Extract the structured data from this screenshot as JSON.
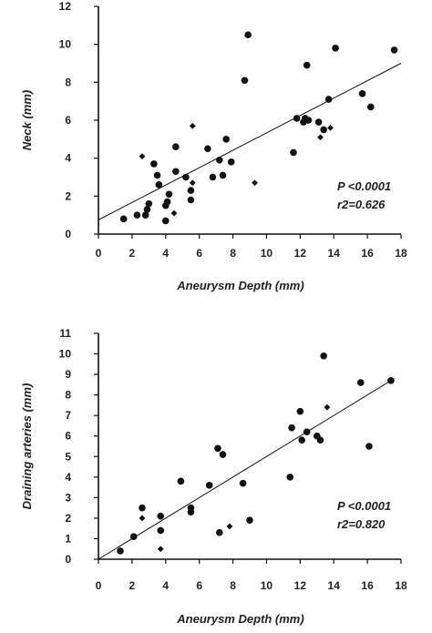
{
  "chart_data": [
    {
      "type": "scatter",
      "xlabel": "Aneurysm Depth (mm)",
      "ylabel": "Neck (mm)",
      "xlim": [
        0,
        18
      ],
      "ylim": [
        0,
        12
      ],
      "xticks": [
        0,
        2,
        4,
        6,
        8,
        10,
        12,
        14,
        16,
        18
      ],
      "yticks": [
        0,
        2,
        4,
        6,
        8,
        10,
        12
      ],
      "annotations": [
        "P <0.0001",
        "r2=0.626"
      ],
      "fit_line": {
        "x": [
          0,
          18
        ],
        "y": [
          0.75,
          9.0
        ]
      },
      "points": [
        {
          "x": 1.5,
          "y": 0.8,
          "m": "dot"
        },
        {
          "x": 2.3,
          "y": 1.0,
          "m": "dot"
        },
        {
          "x": 2.6,
          "y": 4.1,
          "m": "diamond"
        },
        {
          "x": 2.8,
          "y": 1.0,
          "m": "dot"
        },
        {
          "x": 2.9,
          "y": 1.3,
          "m": "dot"
        },
        {
          "x": 3.0,
          "y": 1.6,
          "m": "dot"
        },
        {
          "x": 3.3,
          "y": 3.7,
          "m": "dot"
        },
        {
          "x": 3.5,
          "y": 3.1,
          "m": "dot"
        },
        {
          "x": 3.6,
          "y": 2.6,
          "m": "dot"
        },
        {
          "x": 4.0,
          "y": 1.5,
          "m": "dot"
        },
        {
          "x": 4.1,
          "y": 1.7,
          "m": "dot"
        },
        {
          "x": 4.0,
          "y": 0.7,
          "m": "dot"
        },
        {
          "x": 4.2,
          "y": 2.1,
          "m": "dot"
        },
        {
          "x": 4.5,
          "y": 1.1,
          "m": "diamond"
        },
        {
          "x": 4.6,
          "y": 3.3,
          "m": "dot"
        },
        {
          "x": 4.6,
          "y": 4.6,
          "m": "dot"
        },
        {
          "x": 5.2,
          "y": 3.0,
          "m": "dot"
        },
        {
          "x": 5.5,
          "y": 1.8,
          "m": "dot"
        },
        {
          "x": 5.5,
          "y": 2.3,
          "m": "dot"
        },
        {
          "x": 5.6,
          "y": 2.7,
          "m": "diamond"
        },
        {
          "x": 5.6,
          "y": 5.7,
          "m": "diamond"
        },
        {
          "x": 6.5,
          "y": 4.5,
          "m": "dot"
        },
        {
          "x": 6.8,
          "y": 3.0,
          "m": "dot"
        },
        {
          "x": 7.2,
          "y": 3.9,
          "m": "dot"
        },
        {
          "x": 7.4,
          "y": 3.1,
          "m": "dot"
        },
        {
          "x": 7.6,
          "y": 5.0,
          "m": "dot"
        },
        {
          "x": 7.9,
          "y": 3.8,
          "m": "dot"
        },
        {
          "x": 8.7,
          "y": 8.1,
          "m": "dot"
        },
        {
          "x": 8.9,
          "y": 10.5,
          "m": "dot"
        },
        {
          "x": 9.3,
          "y": 2.7,
          "m": "diamond"
        },
        {
          "x": 11.6,
          "y": 4.3,
          "m": "dot"
        },
        {
          "x": 11.8,
          "y": 6.1,
          "m": "dot"
        },
        {
          "x": 12.2,
          "y": 5.9,
          "m": "dot"
        },
        {
          "x": 12.3,
          "y": 6.1,
          "m": "dot"
        },
        {
          "x": 12.4,
          "y": 8.9,
          "m": "dot"
        },
        {
          "x": 12.5,
          "y": 6.0,
          "m": "dot"
        },
        {
          "x": 13.1,
          "y": 5.9,
          "m": "dot"
        },
        {
          "x": 13.2,
          "y": 5.1,
          "m": "diamond"
        },
        {
          "x": 13.4,
          "y": 5.5,
          "m": "dot"
        },
        {
          "x": 13.7,
          "y": 7.1,
          "m": "dot"
        },
        {
          "x": 13.8,
          "y": 5.6,
          "m": "diamond"
        },
        {
          "x": 14.1,
          "y": 9.8,
          "m": "dot"
        },
        {
          "x": 15.7,
          "y": 7.4,
          "m": "dot"
        },
        {
          "x": 16.2,
          "y": 6.7,
          "m": "dot"
        },
        {
          "x": 17.6,
          "y": 9.7,
          "m": "dot"
        }
      ]
    },
    {
      "type": "scatter",
      "xlabel": "Aneurysm Depth (mm)",
      "ylabel": "Draining arteries (mm)",
      "xlim": [
        0,
        18
      ],
      "ylim": [
        0,
        11
      ],
      "xticks": [
        0,
        2,
        4,
        6,
        8,
        10,
        12,
        14,
        16,
        18
      ],
      "yticks": [
        0,
        1,
        2,
        3,
        4,
        5,
        6,
        7,
        8,
        9,
        10,
        11
      ],
      "annotations": [
        "P <0.0001",
        "r2=0.820"
      ],
      "fit_line": {
        "x": [
          0,
          17.6
        ],
        "y": [
          0.0,
          8.8
        ]
      },
      "points": [
        {
          "x": 1.3,
          "y": 0.4,
          "m": "dot"
        },
        {
          "x": 2.1,
          "y": 1.1,
          "m": "dot"
        },
        {
          "x": 2.6,
          "y": 2.0,
          "m": "diamond"
        },
        {
          "x": 2.6,
          "y": 2.5,
          "m": "dot"
        },
        {
          "x": 3.7,
          "y": 2.1,
          "m": "dot"
        },
        {
          "x": 3.7,
          "y": 1.4,
          "m": "dot"
        },
        {
          "x": 3.7,
          "y": 0.5,
          "m": "diamond"
        },
        {
          "x": 4.9,
          "y": 3.8,
          "m": "dot"
        },
        {
          "x": 5.5,
          "y": 2.5,
          "m": "dot"
        },
        {
          "x": 5.5,
          "y": 2.3,
          "m": "dot"
        },
        {
          "x": 6.6,
          "y": 3.6,
          "m": "dot"
        },
        {
          "x": 7.1,
          "y": 5.4,
          "m": "dot"
        },
        {
          "x": 7.2,
          "y": 1.3,
          "m": "dot"
        },
        {
          "x": 7.4,
          "y": 5.1,
          "m": "dot"
        },
        {
          "x": 7.8,
          "y": 1.6,
          "m": "diamond"
        },
        {
          "x": 8.6,
          "y": 3.7,
          "m": "dot"
        },
        {
          "x": 9.0,
          "y": 1.9,
          "m": "dot"
        },
        {
          "x": 11.4,
          "y": 4.0,
          "m": "dot"
        },
        {
          "x": 11.5,
          "y": 6.4,
          "m": "dot"
        },
        {
          "x": 12.0,
          "y": 7.2,
          "m": "dot"
        },
        {
          "x": 12.1,
          "y": 5.8,
          "m": "dot"
        },
        {
          "x": 12.4,
          "y": 6.2,
          "m": "dot"
        },
        {
          "x": 13.0,
          "y": 6.0,
          "m": "dot"
        },
        {
          "x": 13.2,
          "y": 5.8,
          "m": "dot"
        },
        {
          "x": 13.4,
          "y": 9.9,
          "m": "dot"
        },
        {
          "x": 13.6,
          "y": 7.4,
          "m": "diamond"
        },
        {
          "x": 15.6,
          "y": 8.6,
          "m": "dot"
        },
        {
          "x": 16.1,
          "y": 5.5,
          "m": "dot"
        },
        {
          "x": 17.4,
          "y": 8.7,
          "m": "dot"
        }
      ]
    }
  ]
}
